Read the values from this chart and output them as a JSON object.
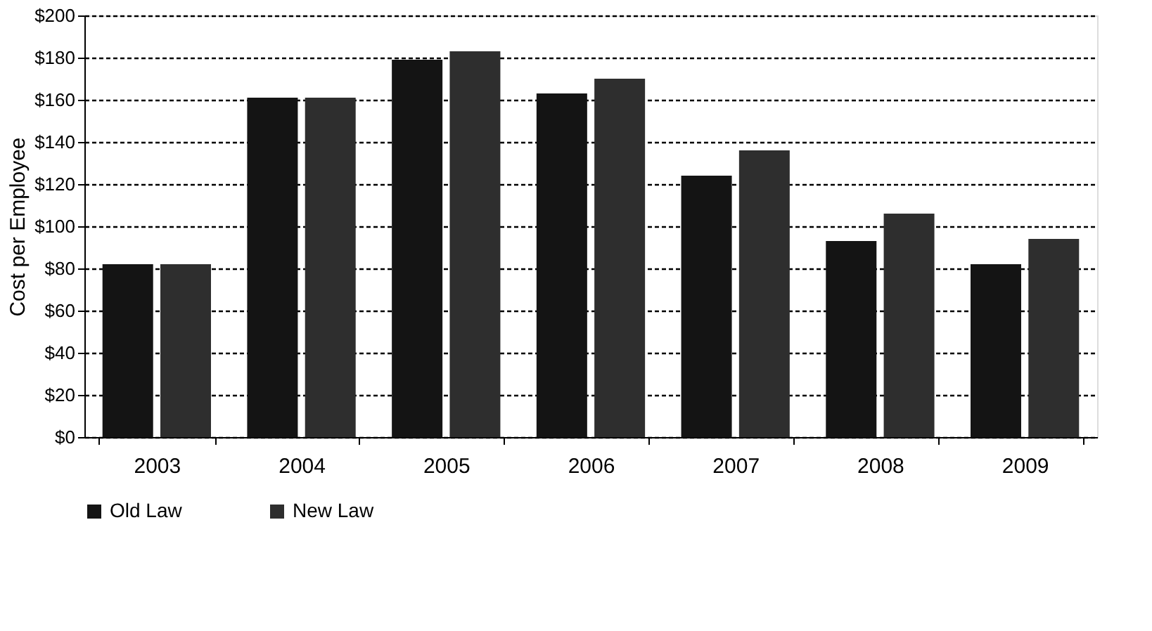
{
  "chart_data": {
    "type": "bar",
    "ylabel": "Cost per Employee",
    "categories": [
      "2003",
      "2004",
      "2005",
      "2006",
      "2007",
      "2008",
      "2009"
    ],
    "series": [
      {
        "name": "Old Law",
        "color": "#141414",
        "values": [
          82,
          161,
          179,
          163,
          124,
          93,
          82
        ]
      },
      {
        "name": "New Law",
        "color": "#2e2e2e",
        "values": [
          82,
          161,
          183,
          170,
          136,
          106,
          94
        ]
      }
    ],
    "ylim": [
      0,
      200
    ],
    "yticks": [
      {
        "value": 0,
        "label": "$0"
      },
      {
        "value": 20,
        "label": "$20"
      },
      {
        "value": 40,
        "label": "$40"
      },
      {
        "value": 60,
        "label": "$60"
      },
      {
        "value": 80,
        "label": "$80"
      },
      {
        "value": 100,
        "label": "$100"
      },
      {
        "value": 120,
        "label": "$120"
      },
      {
        "value": 140,
        "label": "$140"
      },
      {
        "value": 160,
        "label": "$160"
      },
      {
        "value": 180,
        "label": "$180"
      },
      {
        "value": 200,
        "label": "$200"
      }
    ],
    "grid": "y",
    "legend": "bottom",
    "line_style": "dashed"
  }
}
